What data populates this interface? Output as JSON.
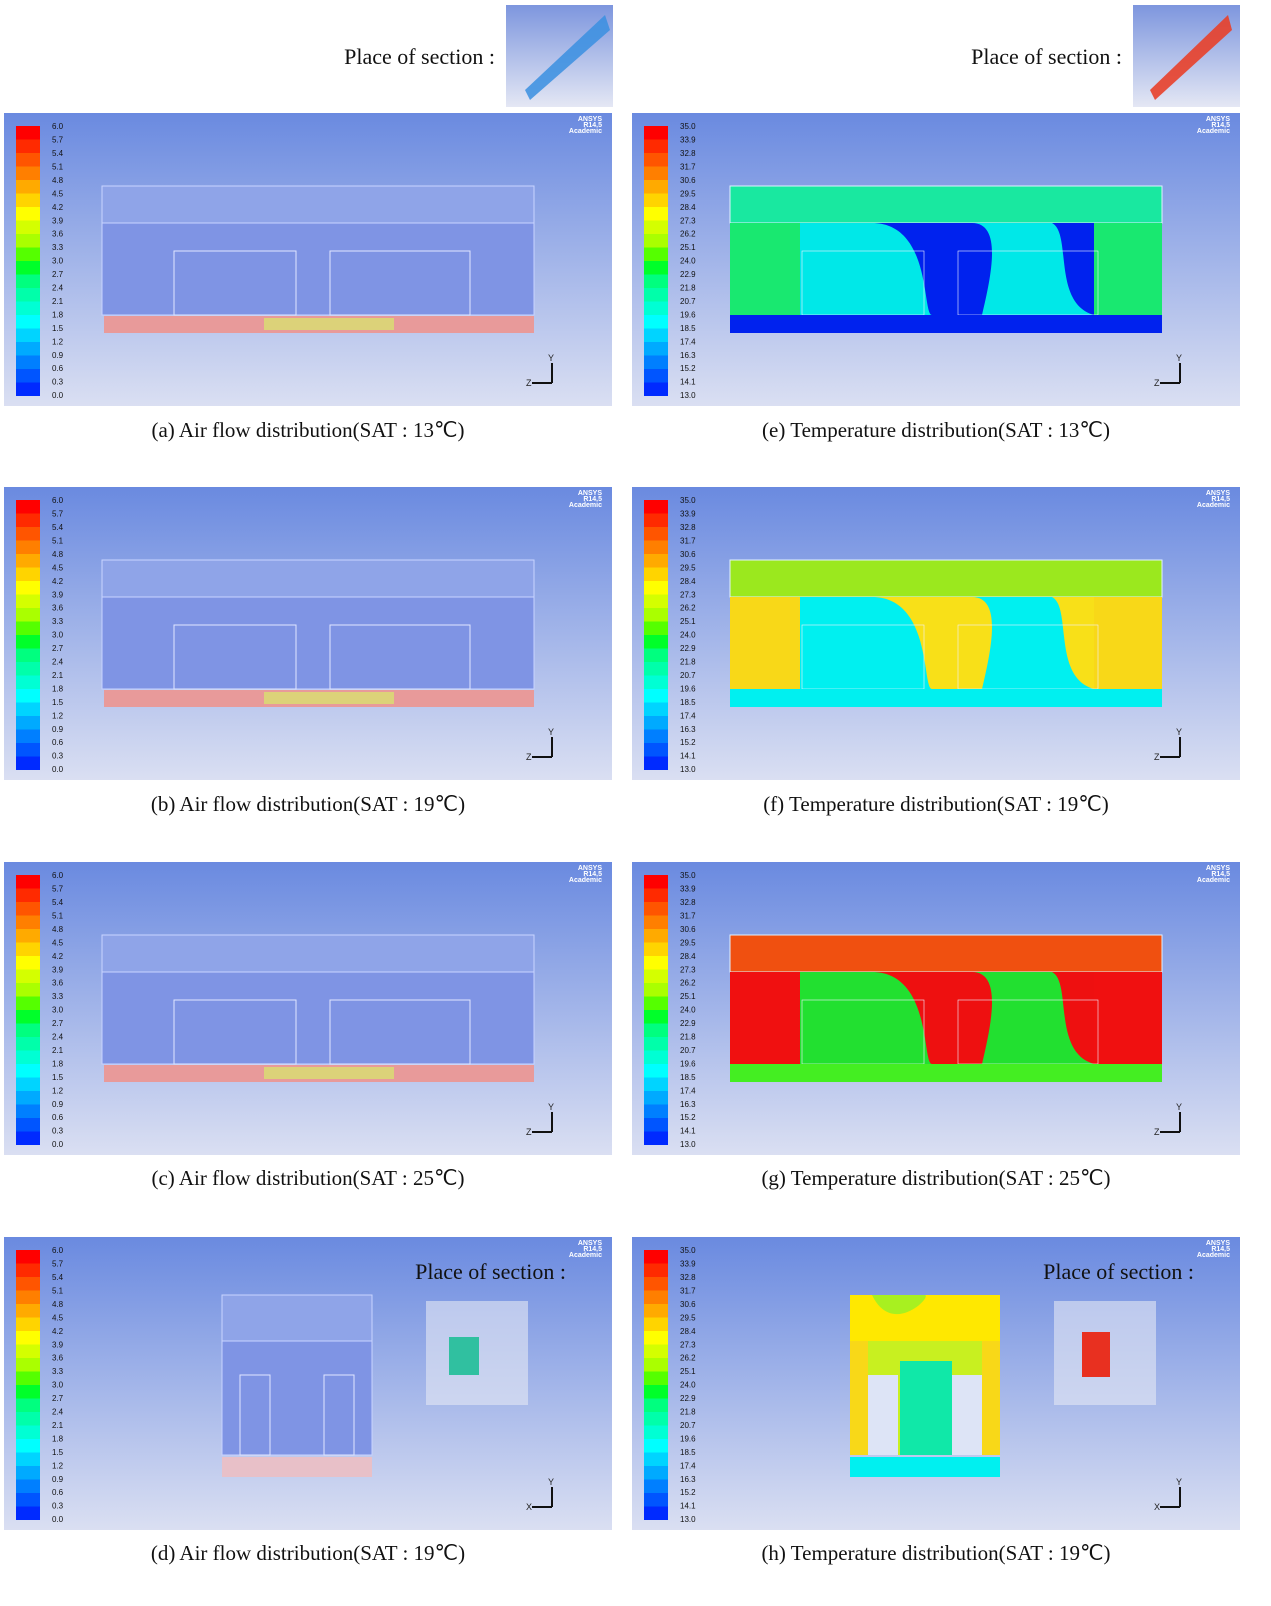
{
  "header": [
    "Place of section :",
    "Place of section :"
  ],
  "software": {
    "name": "ANSYS",
    "version": "R14.5",
    "license": "Academic"
  },
  "axes": {
    "x": "X",
    "y": "Y",
    "z": "Z"
  },
  "flow": {
    "legend": [
      "6.0",
      "5.7",
      "5.4",
      "5.1",
      "4.8",
      "4.5",
      "4.2",
      "3.9",
      "3.6",
      "3.3",
      "3.0",
      "2.7",
      "2.4",
      "2.1",
      "1.8",
      "1.5",
      "1.2",
      "0.9",
      "0.6",
      "0.3",
      "0.0"
    ],
    "captions": [
      "(a) Air flow distribution(SAT : 13℃)",
      "(b) Air flow distribution(SAT : 19℃)",
      "(c) Air flow distribution(SAT : 25℃)",
      "(d) Air flow distribution(SAT : 19℃)"
    ],
    "section_label": "Place of section :"
  },
  "temperature": {
    "legend": [
      "35.0",
      "33.9",
      "32.8",
      "31.7",
      "30.6",
      "29.5",
      "28.4",
      "27.3",
      "26.2",
      "25.1",
      "24.0",
      "22.9",
      "21.8",
      "20.7",
      "19.6",
      "18.5",
      "17.4",
      "16.3",
      "15.2",
      "14.1",
      "13.0"
    ],
    "captions": [
      "(e) Temperature distribution(SAT : 13℃)",
      "(f) Temperature distribution(SAT : 19℃)",
      "(g) Temperature distribution(SAT : 25℃)",
      "(h) Temperature distribution(SAT : 19℃)"
    ],
    "section_label": "Place of section :"
  }
}
